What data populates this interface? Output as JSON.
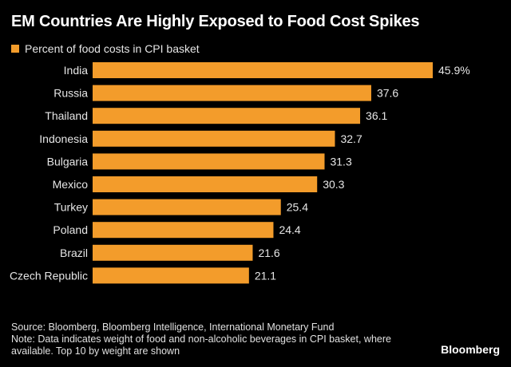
{
  "chart_data": {
    "type": "bar",
    "orientation": "horizontal",
    "title": "EM Countries Are Highly Exposed to Food Cost Spikes",
    "legend": [
      {
        "label": "Percent of food costs in CPI basket",
        "color": "#f39c2b"
      }
    ],
    "categories": [
      "India",
      "Russia",
      "Thailand",
      "Indonesia",
      "Bulgaria",
      "Mexico",
      "Turkey",
      "Poland",
      "Brazil",
      "Czech Republic"
    ],
    "values": [
      45.9,
      37.6,
      36.1,
      32.7,
      31.3,
      30.3,
      25.4,
      24.4,
      21.6,
      21.1
    ],
    "value_labels": [
      "45.9%",
      "37.6",
      "36.1",
      "32.7",
      "31.3",
      "30.3",
      "25.4",
      "24.4",
      "21.6",
      "21.1"
    ],
    "xlim": [
      0,
      50
    ],
    "bar_color": "#f39c2b",
    "grid": false
  },
  "footer": {
    "source": "Source: Bloomberg, Bloomberg Intelligence, International Monetary Fund",
    "note": "Note: Data indicates weight of food and non-alcoholic beverages in CPI basket, where available. Top 10 by weight are shown"
  },
  "brand": "Bloomberg"
}
